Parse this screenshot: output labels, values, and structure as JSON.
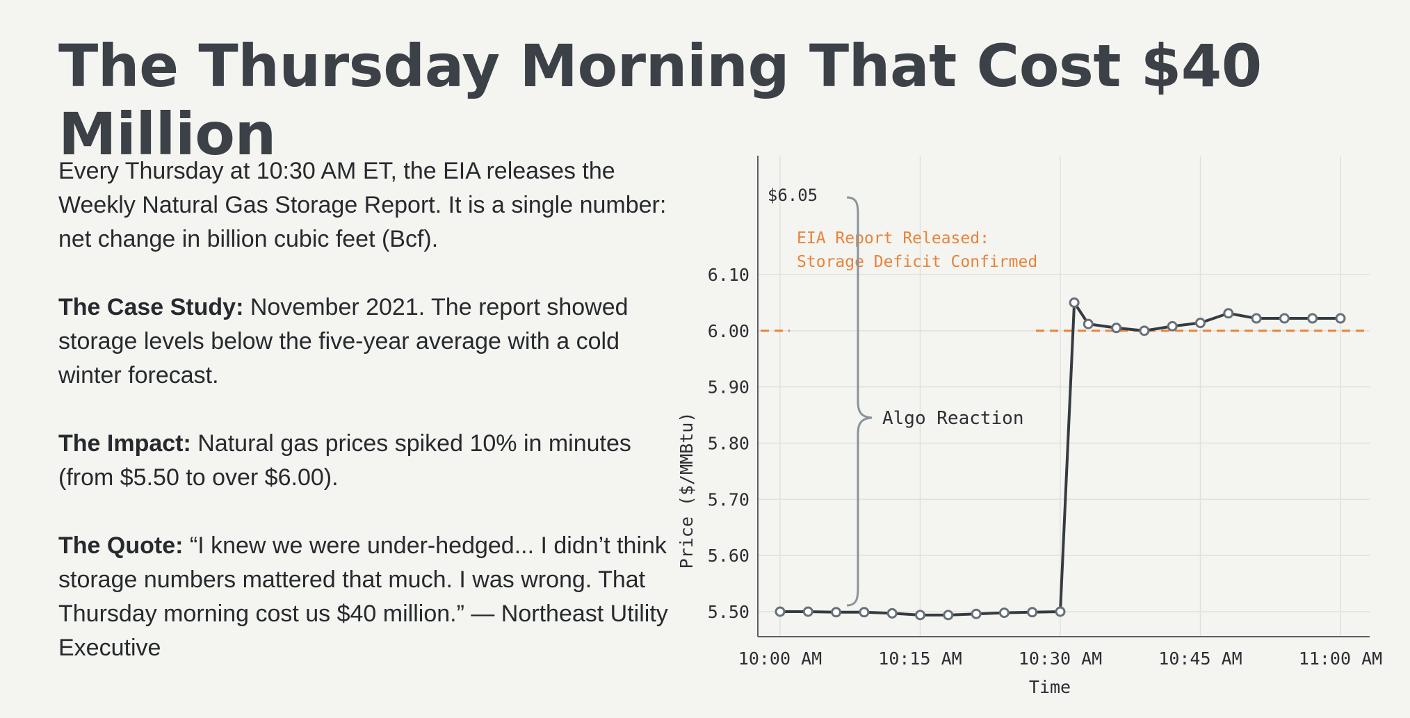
{
  "title": "The Thursday Morning That Cost $40 Million",
  "intro": "Every Thursday at 10:30 AM ET, the EIA releases the Weekly Natural Gas Storage Report. It is a single number: net change in billion cubic feet (Bcf).",
  "case_study": {
    "label": "The Case Study:",
    "text": " November 2021. The report showed storage levels below the five-year average with a cold winter forecast."
  },
  "impact": {
    "label": "The Impact:",
    "text": " Natural gas prices spiked 10% in minutes (from $5.50 to over $6.00)."
  },
  "quote": {
    "label": "The Quote:",
    "text": " “I knew we were under-hedged... I didn’t think storage numbers mattered that much. I was wrong. That Thursday morning cost us $40 million.” — Northeast Utility Executive"
  },
  "chart_data": {
    "type": "line",
    "xlabel": "Time",
    "ylabel": "Price ($/MMBtu)",
    "x_ticks": [
      "10:00 AM",
      "10:15 AM",
      "10:30 AM",
      "10:45 AM",
      "11:00 AM"
    ],
    "y_ticks": [
      "5.50",
      "5.60",
      "5.70",
      "5.80",
      "5.90",
      "6.00",
      "6.10"
    ],
    "xlim": [
      0,
      60
    ],
    "ylim": [
      5.46,
      6.12
    ],
    "grid": true,
    "series": [
      {
        "x": [
          0,
          3,
          6,
          9,
          12,
          15,
          18,
          21,
          24,
          27,
          30,
          31.5,
          33,
          36,
          39,
          42,
          45,
          48,
          51,
          54,
          57,
          60
        ],
        "y": [
          5.5,
          5.5,
          5.499,
          5.499,
          5.497,
          5.494,
          5.494,
          5.496,
          5.498,
          5.499,
          5.5,
          6.05,
          6.012,
          6.005,
          6.0,
          6.008,
          6.014,
          6.031,
          6.022,
          6.022,
          6.022,
          6.022
        ]
      }
    ],
    "reference_line": {
      "y": 6.0,
      "color": "#e8833a"
    },
    "annotations": {
      "peak_label": "$6.05",
      "report_line1": "EIA Report Released:",
      "report_line2": "Storage Deficit Confirmed",
      "brace_label": "Algo Reaction"
    },
    "colors": {
      "line": "#353b41",
      "marker_fill": "#ffffff",
      "marker_stroke": "#66707a",
      "grid": "#e0e0dc",
      "axis": "#5a5f64"
    }
  }
}
